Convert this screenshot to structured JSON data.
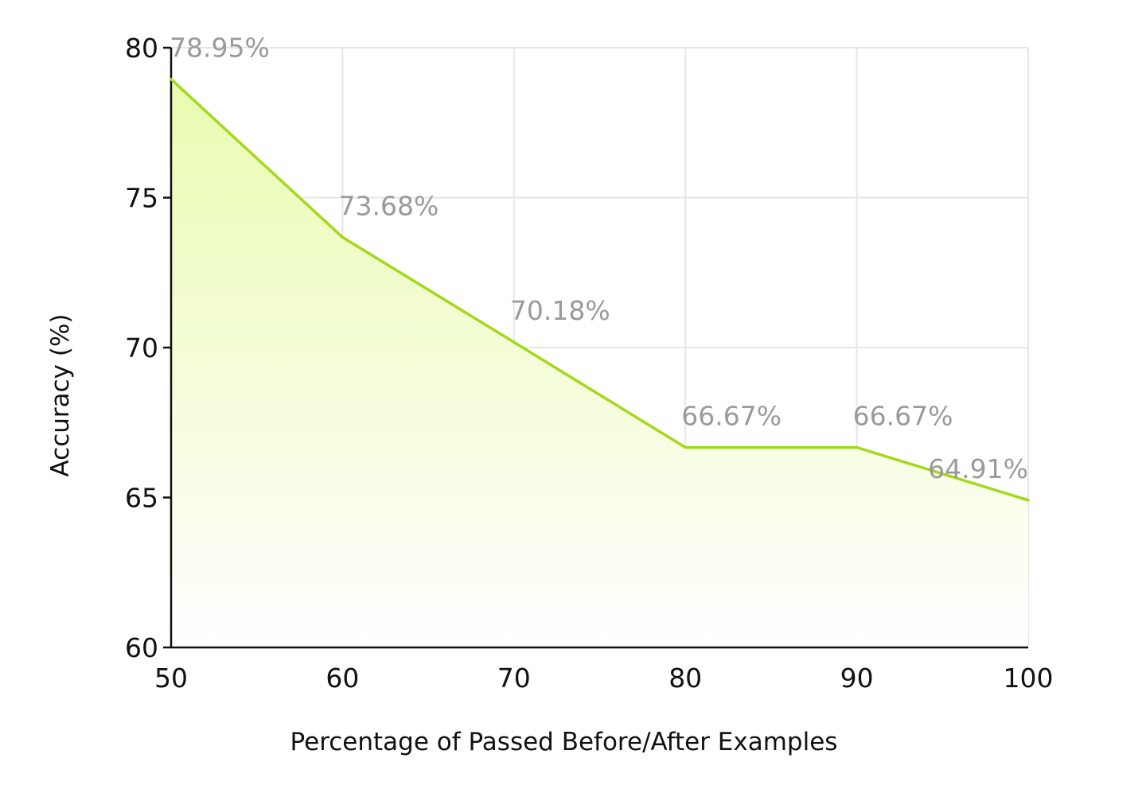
{
  "chart_data": {
    "type": "area",
    "title": "",
    "xlabel": "Percentage of Passed Before/After Examples",
    "ylabel": "Accuracy (%)",
    "x": [
      50,
      60,
      70,
      80,
      90,
      100
    ],
    "series": [
      {
        "values": [
          78.95,
          73.68,
          70.18,
          66.67,
          66.67,
          64.91
        ],
        "labels": [
          "78.95%",
          "73.68%",
          "70.18%",
          "66.67%",
          "66.67%",
          "64.91%"
        ],
        "color": "#a3d91a"
      }
    ],
    "xlim": [
      50,
      100
    ],
    "ylim": [
      60,
      80
    ],
    "xticks": [
      "50",
      "60",
      "70",
      "80",
      "90",
      "100"
    ],
    "yticks": [
      "60",
      "65",
      "70",
      "75",
      "80"
    ],
    "grid": true,
    "fill_color": "#e9fbb0"
  }
}
